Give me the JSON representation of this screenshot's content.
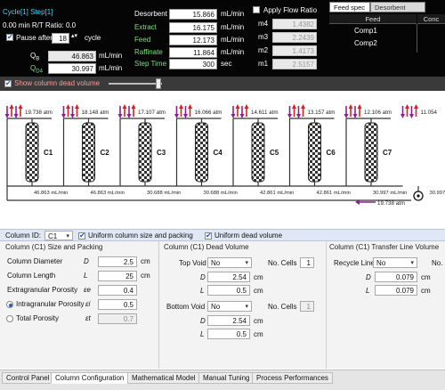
{
  "top": {
    "cycle_step": "Cycle[1] Step[1]",
    "time_ratio": "0.00 min  R/T Ratio: 0.0",
    "pause_after_label": "Pause after",
    "pause_after_value": "18",
    "pause_after_unit": "cycle",
    "q_b_label": "Q",
    "q_b_sub": "B",
    "q_b_value": "46.863",
    "q_b_unit": "mL/min",
    "q_d_label": "Q",
    "q_d_sub": "D4",
    "q_d_value": "30.997",
    "q_d_unit": "mL/min",
    "desorbent_label": "Desorbent",
    "desorbent_value": "15.866",
    "desorbent_unit": "mL/min",
    "extract_label": "Extract",
    "extract_value": "16.175",
    "extract_unit": "mL/min",
    "feed_label": "Feed",
    "feed_value": "12.173",
    "feed_unit": "mL/min",
    "raffinate_label": "Raffinate",
    "raffinate_value": "11.864",
    "raffinate_unit": "mL/min",
    "steptime_label": "Step Time",
    "steptime_value": "300",
    "steptime_unit": "sec",
    "apply_flow_ratio_label": "Apply Flow Ratio",
    "ratios": [
      {
        "label": "m4",
        "value": "1.4382"
      },
      {
        "label": "m3",
        "value": "2.2439"
      },
      {
        "label": "m2",
        "value": "1.4173"
      },
      {
        "label": "m1",
        "value": "2.5157"
      }
    ],
    "feed_tabs": [
      "Feed spec",
      "Desorbent spec"
    ],
    "feed_headers": [
      "Feed",
      "Conc"
    ],
    "feed_rows": [
      "Comp1",
      "Comp2"
    ]
  },
  "show_dead_volume_label": "Show column dead volume",
  "schematic": {
    "columns": [
      "C1",
      "C2",
      "C3",
      "C4",
      "C5",
      "C6",
      "C7"
    ],
    "pressures": [
      "19.738 atm",
      "18.148 atm",
      "17.107 atm",
      "16.066 atm",
      "14.611 atm",
      "13.157 atm",
      "12.106 atm",
      "11.054"
    ],
    "flows": [
      "46.863 mL/min",
      "46.863 mL/min",
      "30.688 mL/min",
      "30.688 mL/min",
      "42.861 mL/min",
      "42.861 mL/min",
      "30.997 mL/min",
      "30.997"
    ],
    "return_pressure": "19.738 atm",
    "colors": {
      "red": "#d82020",
      "blue": "#2050d0",
      "purple": "#8a2090"
    }
  },
  "config": {
    "column_id_label": "Column ID:",
    "column_id_value": "C1",
    "uniform_size_label": "Uniform column size and packing",
    "uniform_dead_label": "Uniform dead volume",
    "size_title": "Column (C1) Size and Packing",
    "diameter_label": "Column Diameter",
    "diameter_sym": "D",
    "diameter_value": "2.5",
    "diameter_unit": "cm",
    "length_label": "Column Length",
    "length_sym": "L",
    "length_value": "25",
    "length_unit": "cm",
    "extra_porosity_label": "Extragranular Porosity",
    "extra_porosity_sym": "εe",
    "extra_porosity_value": "0.4",
    "intra_porosity_label": "Intragranular Porosity",
    "intra_porosity_sym": "εi",
    "intra_porosity_value": "0.5",
    "total_porosity_label": "Total Porosity",
    "total_porosity_sym": "εt",
    "total_porosity_value": "0.7",
    "dead_title": "Column (C1) Dead Volume",
    "top_void_label": "Top Void",
    "top_void_value": "No",
    "top_cells_label": "No. Cells",
    "top_cells_value": "1",
    "top_d_sym": "D",
    "top_d_value": "2.54",
    "top_d_unit": "cm",
    "top_l_sym": "L",
    "top_l_value": "0.5",
    "top_l_unit": "cm",
    "bottom_void_label": "Bottom Void",
    "bottom_void_value": "No",
    "bottom_cells_label": "No. Cells",
    "bottom_cells_value": "1",
    "bottom_d_sym": "D",
    "bottom_d_value": "2.54",
    "bottom_d_unit": "cm",
    "bottom_l_sym": "L",
    "bottom_l_value": "0.5",
    "bottom_l_unit": "cm",
    "transfer_title": "Column (C1) Transfer Line Volume",
    "recycle_label": "Recycle Line",
    "recycle_value": "No",
    "recycle_cells_label": "No.",
    "recycle_d_sym": "D",
    "recycle_d_value": "0.079",
    "recycle_d_unit": "cm",
    "recycle_l_sym": "L",
    "recycle_l_value": "0.079",
    "recycle_l_unit": "cm"
  },
  "tabs": [
    "Control Panel",
    "Column Configuration",
    "Mathematical Model",
    "Manual Tuning",
    "Process Performances"
  ],
  "active_tab": "Column Configuration"
}
